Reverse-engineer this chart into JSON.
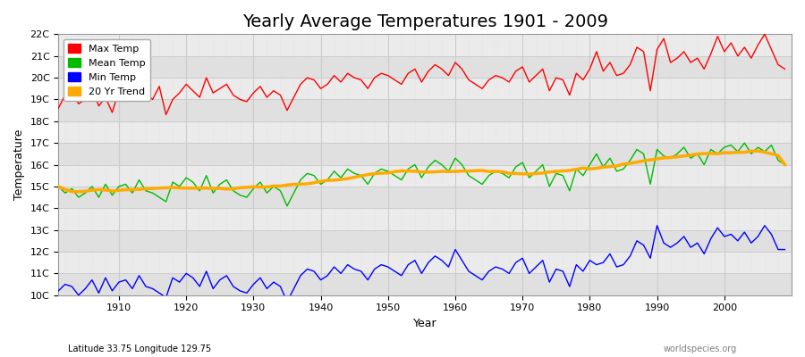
{
  "title": "Yearly Average Temperatures 1901 - 2009",
  "xlabel": "Year",
  "ylabel": "Temperature",
  "subtitle_left": "Latitude 33.75 Longitude 129.75",
  "subtitle_right": "worldspecies.org",
  "years": [
    1901,
    1902,
    1903,
    1904,
    1905,
    1906,
    1907,
    1908,
    1909,
    1910,
    1911,
    1912,
    1913,
    1914,
    1915,
    1916,
    1917,
    1918,
    1919,
    1920,
    1921,
    1922,
    1923,
    1924,
    1925,
    1926,
    1927,
    1928,
    1929,
    1930,
    1931,
    1932,
    1933,
    1934,
    1935,
    1936,
    1937,
    1938,
    1939,
    1940,
    1941,
    1942,
    1943,
    1944,
    1945,
    1946,
    1947,
    1948,
    1949,
    1950,
    1951,
    1952,
    1953,
    1954,
    1955,
    1956,
    1957,
    1958,
    1959,
    1960,
    1961,
    1962,
    1963,
    1964,
    1965,
    1966,
    1967,
    1968,
    1969,
    1970,
    1971,
    1972,
    1973,
    1974,
    1975,
    1976,
    1977,
    1978,
    1979,
    1980,
    1981,
    1982,
    1983,
    1984,
    1985,
    1986,
    1987,
    1988,
    1989,
    1990,
    1991,
    1992,
    1993,
    1994,
    1995,
    1996,
    1997,
    1998,
    1999,
    2000,
    2001,
    2002,
    2003,
    2004,
    2005,
    2006,
    2007,
    2008,
    2009
  ],
  "max_temp": [
    18.6,
    19.2,
    19.3,
    18.8,
    19.0,
    19.5,
    18.7,
    19.1,
    18.4,
    19.4,
    19.8,
    19.7,
    19.5,
    19.3,
    19.0,
    19.6,
    18.3,
    19.0,
    19.3,
    19.7,
    19.4,
    19.1,
    20.0,
    19.3,
    19.5,
    19.7,
    19.2,
    19.0,
    18.9,
    19.3,
    19.6,
    19.1,
    19.4,
    19.2,
    18.5,
    19.1,
    19.7,
    20.0,
    19.9,
    19.5,
    19.7,
    20.1,
    19.8,
    20.2,
    20.0,
    19.9,
    19.5,
    20.0,
    20.2,
    20.1,
    19.9,
    19.7,
    20.2,
    20.4,
    19.8,
    20.3,
    20.6,
    20.4,
    20.1,
    20.7,
    20.4,
    19.9,
    19.7,
    19.5,
    19.9,
    20.1,
    20.0,
    19.8,
    20.3,
    20.5,
    19.8,
    20.1,
    20.4,
    19.4,
    20.0,
    19.9,
    19.2,
    20.2,
    19.9,
    20.4,
    21.2,
    20.3,
    20.7,
    20.1,
    20.2,
    20.6,
    21.4,
    21.2,
    19.4,
    21.3,
    21.8,
    20.7,
    20.9,
    21.2,
    20.7,
    20.9,
    20.4,
    21.1,
    21.9,
    21.2,
    21.6,
    21.0,
    21.4,
    20.9,
    21.5,
    22.0,
    21.3,
    20.6,
    20.4
  ],
  "mean_temp": [
    15.0,
    14.7,
    14.9,
    14.5,
    14.7,
    15.0,
    14.5,
    15.1,
    14.6,
    15.0,
    15.1,
    14.7,
    15.3,
    14.8,
    14.7,
    14.5,
    14.3,
    15.2,
    15.0,
    15.4,
    15.2,
    14.8,
    15.5,
    14.7,
    15.1,
    15.3,
    14.8,
    14.6,
    14.5,
    14.9,
    15.2,
    14.7,
    15.0,
    14.8,
    14.1,
    14.7,
    15.3,
    15.6,
    15.5,
    15.1,
    15.3,
    15.7,
    15.4,
    15.8,
    15.6,
    15.5,
    15.1,
    15.6,
    15.8,
    15.7,
    15.5,
    15.3,
    15.8,
    16.0,
    15.4,
    15.9,
    16.2,
    16.0,
    15.7,
    16.3,
    16.0,
    15.5,
    15.3,
    15.1,
    15.5,
    15.7,
    15.6,
    15.4,
    15.9,
    16.1,
    15.4,
    15.7,
    16.0,
    15.0,
    15.6,
    15.5,
    14.8,
    15.8,
    15.5,
    16.0,
    16.5,
    15.9,
    16.3,
    15.7,
    15.8,
    16.2,
    16.7,
    16.5,
    15.1,
    16.7,
    16.4,
    16.3,
    16.5,
    16.8,
    16.3,
    16.5,
    16.0,
    16.7,
    16.5,
    16.8,
    16.9,
    16.6,
    17.0,
    16.5,
    16.8,
    16.6,
    16.9,
    16.2,
    16.0
  ],
  "min_temp": [
    10.2,
    10.5,
    10.4,
    10.0,
    10.3,
    10.7,
    10.1,
    10.8,
    10.2,
    10.6,
    10.7,
    10.3,
    10.9,
    10.4,
    10.3,
    10.1,
    9.9,
    10.8,
    10.6,
    11.0,
    10.8,
    10.4,
    11.1,
    10.3,
    10.7,
    10.9,
    10.4,
    10.2,
    10.1,
    10.5,
    10.8,
    10.3,
    10.6,
    10.4,
    9.7,
    10.3,
    10.9,
    11.2,
    11.1,
    10.7,
    10.9,
    11.3,
    11.0,
    11.4,
    11.2,
    11.1,
    10.7,
    11.2,
    11.4,
    11.3,
    11.1,
    10.9,
    11.4,
    11.6,
    11.0,
    11.5,
    11.8,
    11.6,
    11.3,
    12.1,
    11.6,
    11.1,
    10.9,
    10.7,
    11.1,
    11.3,
    11.2,
    11.0,
    11.5,
    11.7,
    11.0,
    11.3,
    11.6,
    10.6,
    11.2,
    11.1,
    10.4,
    11.4,
    11.1,
    11.6,
    11.4,
    11.5,
    11.9,
    11.3,
    11.4,
    11.8,
    12.5,
    12.3,
    11.7,
    13.2,
    12.4,
    12.2,
    12.4,
    12.7,
    12.2,
    12.4,
    11.9,
    12.6,
    13.1,
    12.7,
    12.8,
    12.5,
    12.9,
    12.4,
    12.7,
    13.2,
    12.8,
    12.1,
    12.1
  ],
  "max_color": "#ff0000",
  "mean_color": "#00bb00",
  "min_color": "#0000ff",
  "trend_color": "#ffaa00",
  "fig_bg_color": "#ffffff",
  "plot_bg_color": "#e8e8e8",
  "band_color_even": "#e0e0e0",
  "band_color_odd": "#ebebeb",
  "grid_major_color": "#cccccc",
  "grid_minor_color": "#dddddd",
  "ylim": [
    10,
    22
  ],
  "yticks": [
    10,
    11,
    12,
    13,
    14,
    15,
    16,
    17,
    18,
    19,
    20,
    21,
    22
  ],
  "ytick_labels": [
    "10C",
    "11C",
    "12C",
    "13C",
    "14C",
    "15C",
    "16C",
    "17C",
    "18C",
    "19C",
    "20C",
    "21C",
    "22C"
  ],
  "xlim": [
    1901,
    2010
  ],
  "xticks": [
    1910,
    1920,
    1930,
    1940,
    1950,
    1960,
    1970,
    1980,
    1990,
    2000
  ],
  "linewidth": 1.0,
  "trend_linewidth": 2.5,
  "title_fontsize": 14,
  "axis_label_fontsize": 9,
  "tick_fontsize": 8,
  "legend_fontsize": 8
}
